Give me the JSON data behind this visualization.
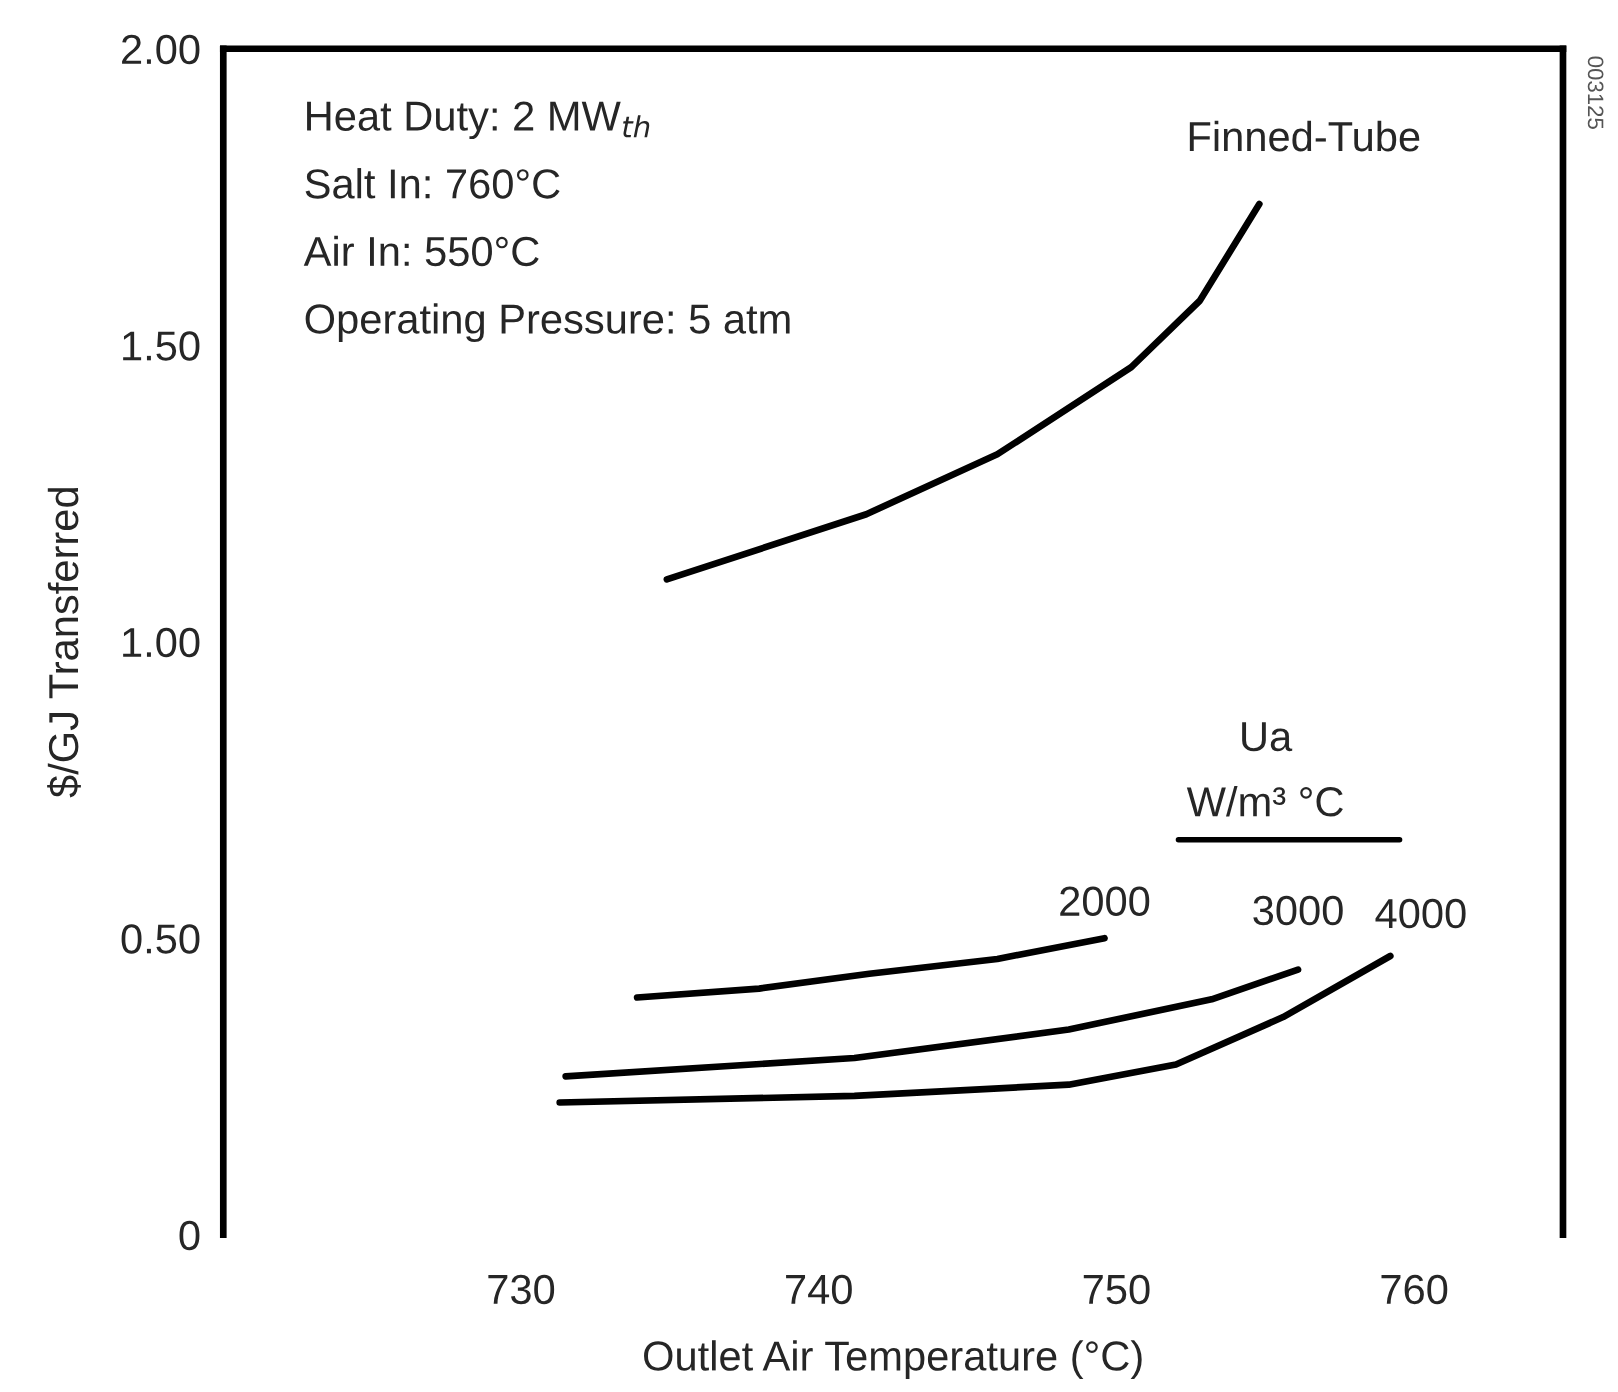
{
  "chart_data": {
    "type": "line",
    "xlabel": "Outlet Air Temperature (°C)",
    "ylabel": "$/GJ Transferred",
    "xlim": [
      720,
      765
    ],
    "xticks": [
      730,
      740,
      750,
      760
    ],
    "ylim": [
      0,
      2
    ],
    "yticks": [
      {
        "value": 0,
        "label": "0"
      },
      {
        "value": 0.5,
        "label": "0.50"
      },
      {
        "value": 1,
        "label": "1.00"
      },
      {
        "value": 1.5,
        "label": "1.50"
      },
      {
        "value": 2,
        "label": "2.00"
      }
    ],
    "grid": false,
    "legend": false,
    "marker": "none",
    "line_style": "solid",
    "annotations": [
      "Heat Duty: 2 MW$_{th}$",
      "Salt In: 760°C",
      "Air In: 550°C",
      "Operating Pressure: 5 atm",
      "Ua",
      "W/m³ °C",
      "003125"
    ],
    "series": [
      {
        "name": "Finned-Tube",
        "color": "#000000",
        "x": [
          734.9,
          741.6,
          746,
          750.5,
          752.8,
          754.8
        ],
        "values": [
          1.105,
          1.215,
          1.316,
          1.463,
          1.575,
          1.738
        ]
      },
      {
        "name": "2000",
        "color": "#000000",
        "x": [
          733.9,
          738,
          741.7,
          746,
          749.6
        ],
        "values": [
          0.4,
          0.415,
          0.44,
          0.465,
          0.5
        ]
      },
      {
        "name": "3000",
        "color": "#000000",
        "x": [
          731.5,
          741.2,
          748.4,
          753.2,
          756.1
        ],
        "values": [
          0.267,
          0.298,
          0.346,
          0.397,
          0.447
        ]
      },
      {
        "name": "4000",
        "color": "#000000",
        "x": [
          731.3,
          741.2,
          748.4,
          752,
          755.6,
          759.2
        ],
        "values": [
          0.223,
          0.234,
          0.253,
          0.287,
          0.367,
          0.47
        ]
      }
    ]
  }
}
